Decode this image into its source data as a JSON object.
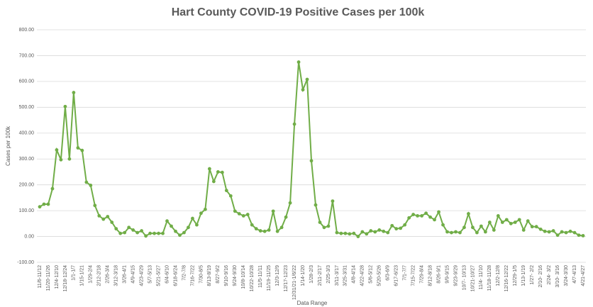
{
  "chart_data": {
    "type": "line",
    "title": "Hart County COVID-19 Positive Cases per 100k",
    "x_label": "Data Range",
    "y_label": "Cases per 100k",
    "categories": [
      "11/6-11/12",
      null,
      "11/20-11/26",
      null,
      "12/4-12/10",
      null,
      "12/18-12/24",
      null,
      "1/1-1/7",
      null,
      "1/15-1/21",
      null,
      "1/29-2/4",
      null,
      "2/12-2/18",
      null,
      "2/26-3/4",
      null,
      "3/12-3/18",
      null,
      "3/26-4/1",
      null,
      "4/9-4/15",
      null,
      "4/23-4/29",
      null,
      "5/7-5/13",
      null,
      "5/21-5/27",
      null,
      "6/4-6/10",
      null,
      "6/18-6/24",
      null,
      "7/2-7/8",
      null,
      "7/16-7/22",
      null,
      "7/30-8/5",
      null,
      "8/13-8/19",
      null,
      "8/27-9/2",
      null,
      "9/10-9/16",
      null,
      "9/24-9/30",
      null,
      "10/8-10/14",
      null,
      "10/22-10/28",
      null,
      "11/5-11/11",
      null,
      "11/19-11/25",
      null,
      "12/3-12/9",
      null,
      "12/17-12/23",
      null,
      "12/31/21-1/6/22",
      null,
      "1/14-1/20",
      null,
      "1/28-2/3",
      null,
      "2/11-2/17",
      null,
      "2/25-3/3",
      null,
      "3/11-3/17",
      null,
      "3/25-3/31",
      null,
      "4/8-4/14",
      null,
      "4/22-4/28",
      null,
      "5/6-5/12",
      null,
      "5/20-5/26",
      null,
      "6/3-6/9",
      null,
      "6/17-6/23",
      null,
      "7/1-7/7",
      null,
      "7/15-7/22",
      null,
      "7/29-8/4",
      null,
      "8/12-8/18",
      null,
      "8/26-9/1",
      null,
      "9/9-9/15",
      null,
      "9/23-9/29",
      null,
      "10/7- 10/13",
      null,
      "10/21-10/27",
      null,
      "11/4- 11/10",
      null,
      "11/18-11/28",
      null,
      "12/2-12/8",
      null,
      "12/16-12/22",
      null,
      "12/29-1/5",
      null,
      "1/13-1/19",
      null,
      "1/27- 2/2",
      null,
      "2/10- 2/16",
      null,
      "2/24- 3/2",
      null,
      "3/10- 3/16",
      null,
      "3/24-3/30",
      null,
      "4/7-4/13",
      null,
      "4/21-4/27"
    ],
    "series": [
      {
        "name": "Cases per 100k",
        "color": "#70ad47",
        "values": [
          115,
          125,
          125,
          185,
          335,
          297,
          503,
          300,
          557,
          343,
          333,
          210,
          198,
          120,
          80,
          67,
          77,
          55,
          30,
          12,
          15,
          35,
          25,
          15,
          22,
          2,
          12,
          12,
          12,
          12,
          60,
          40,
          20,
          5,
          15,
          35,
          70,
          45,
          90,
          105,
          262,
          213,
          250,
          248,
          178,
          157,
          98,
          88,
          80,
          85,
          45,
          30,
          22,
          20,
          25,
          98,
          20,
          35,
          75,
          130,
          435,
          675,
          568,
          608,
          293,
          122,
          55,
          35,
          40,
          137,
          15,
          12,
          12,
          10,
          12,
          0,
          18,
          10,
          22,
          18,
          25,
          20,
          15,
          42,
          30,
          32,
          45,
          72,
          85,
          80,
          80,
          90,
          75,
          65,
          95,
          45,
          18,
          15,
          18,
          15,
          35,
          88,
          35,
          15,
          40,
          18,
          55,
          25,
          80,
          55,
          65,
          50,
          55,
          65,
          25,
          60,
          38,
          38,
          28,
          20,
          18,
          22,
          5,
          18,
          15,
          20,
          15,
          5,
          3
        ]
      }
    ],
    "ylim": [
      -100,
      800
    ],
    "yticks": [
      {
        "value": -100,
        "label": "-100.00"
      },
      {
        "value": 0,
        "label": "0.00"
      },
      {
        "value": 100,
        "label": "100.00"
      },
      {
        "value": 200,
        "label": "200.00"
      },
      {
        "value": 300,
        "label": "300.00"
      },
      {
        "value": 400,
        "label": "400.00"
      },
      {
        "value": 500,
        "label": "500.00"
      },
      {
        "value": 600,
        "label": "600.00"
      },
      {
        "value": 700,
        "label": "700.00"
      },
      {
        "value": 800,
        "label": "800.00"
      }
    ],
    "grid": true
  }
}
